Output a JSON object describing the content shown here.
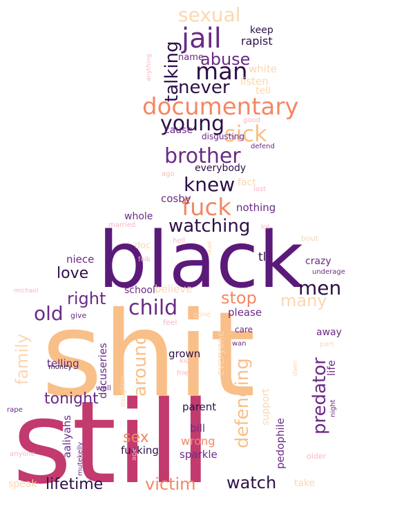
{
  "palette": {
    "black": "#5b1a7a",
    "purple": "#6a2a86",
    "deep_purple": "#2d0f47",
    "magenta": "#c23a6e",
    "pink": "#d05a7a",
    "orange": "#f48763",
    "peach": "#f9bf88",
    "light_peach": "#fbd7b1",
    "light_pink": "#f5b7c0"
  },
  "words": [
    {
      "text": "shit",
      "color": "peach"
    },
    {
      "text": "still",
      "color": "magenta"
    },
    {
      "text": "black",
      "color": "black"
    },
    {
      "text": "documentary",
      "color": "orange"
    },
    {
      "text": "jail",
      "color": "purple"
    },
    {
      "text": "man",
      "color": "deep_purple"
    },
    {
      "text": "sexual",
      "color": "light_peach"
    },
    {
      "text": "abuse",
      "color": "purple"
    },
    {
      "text": "talking",
      "color": "deep_purple"
    },
    {
      "text": "never",
      "color": "deep_purple"
    },
    {
      "text": "young",
      "color": "deep_purple"
    },
    {
      "text": "sick",
      "color": "peach"
    },
    {
      "text": "brother",
      "color": "purple"
    },
    {
      "text": "knew",
      "color": "deep_purple"
    },
    {
      "text": "fuck",
      "color": "orange"
    },
    {
      "text": "watching",
      "color": "deep_purple"
    },
    {
      "text": "keep",
      "color": "deep_purple"
    },
    {
      "text": "rapist",
      "color": "deep_purple"
    },
    {
      "text": "name",
      "color": "purple"
    },
    {
      "text": "white",
      "color": "light_peach"
    },
    {
      "text": "listen",
      "color": "light_peach"
    },
    {
      "text": "tell",
      "color": "light_peach"
    },
    {
      "text": "good",
      "color": "light_pink"
    },
    {
      "text": "cause",
      "color": "purple"
    },
    {
      "text": "disgusting",
      "color": "purple"
    },
    {
      "text": "defend",
      "color": "purple"
    },
    {
      "text": "everybody",
      "color": "deep_purple"
    },
    {
      "text": "fact",
      "color": "light_peach"
    },
    {
      "text": "last",
      "color": "light_pink"
    },
    {
      "text": "ago",
      "color": "light_pink"
    },
    {
      "text": "anything",
      "color": "light_pink"
    },
    {
      "text": "cosby",
      "color": "purple"
    },
    {
      "text": "nothing",
      "color": "purple"
    },
    {
      "text": "whole",
      "color": "purple"
    },
    {
      "text": "married",
      "color": "light_pink"
    },
    {
      "text": "lol",
      "color": "light_pink"
    },
    {
      "text": "bout",
      "color": "light_peach"
    },
    {
      "text": "doc",
      "color": "light_peach"
    },
    {
      "text": "hell",
      "color": "light_pink"
    },
    {
      "text": "read",
      "color": "light_peach"
    },
    {
      "text": "niece",
      "color": "purple"
    },
    {
      "text": "folk",
      "color": "light_pink"
    },
    {
      "text": "tl",
      "color": "deep_purple"
    },
    {
      "text": "crazy",
      "color": "purple"
    },
    {
      "text": "underage",
      "color": "purple"
    },
    {
      "text": "love",
      "color": "deep_purple"
    },
    {
      "text": "men",
      "color": "deep_purple"
    },
    {
      "text": "michael",
      "color": "light_pink"
    },
    {
      "text": "right",
      "color": "purple"
    },
    {
      "text": "school",
      "color": "purple"
    },
    {
      "text": "believe",
      "color": "light_peach"
    },
    {
      "text": "stop",
      "color": "orange"
    },
    {
      "text": "many",
      "color": "light_peach"
    },
    {
      "text": "old",
      "color": "purple"
    },
    {
      "text": "child",
      "color": "purple"
    },
    {
      "text": "give",
      "color": "purple"
    },
    {
      "text": "feel",
      "color": "light_pink"
    },
    {
      "text": "please",
      "color": "purple"
    },
    {
      "text": "gone",
      "color": "light_peach"
    },
    {
      "text": "family",
      "color": "light_peach"
    },
    {
      "text": "around",
      "color": "peach"
    },
    {
      "text": "docuseries",
      "color": "purple"
    },
    {
      "text": "everyone",
      "color": "light_peach"
    },
    {
      "text": "care",
      "color": "purple"
    },
    {
      "text": "defending",
      "color": "peach"
    },
    {
      "text": "away",
      "color": "purple"
    },
    {
      "text": "wan",
      "color": "purple"
    },
    {
      "text": "part",
      "color": "light_peach"
    },
    {
      "text": "grown",
      "color": "deep_purple"
    },
    {
      "text": "telling",
      "color": "purple"
    },
    {
      "text": "money",
      "color": "deep_purple"
    },
    {
      "text": "kid",
      "color": "light_pink"
    },
    {
      "text": "predator",
      "color": "purple"
    },
    {
      "text": "life",
      "color": "purple"
    },
    {
      "text": "daen",
      "color": "light_peach"
    },
    {
      "text": "friend",
      "color": "light_pink"
    },
    {
      "text": "well",
      "color": "purple"
    },
    {
      "text": "daughter",
      "color": "light_peach"
    },
    {
      "text": "tonight",
      "color": "purple"
    },
    {
      "text": "parent",
      "color": "deep_purple"
    },
    {
      "text": "support",
      "color": "light_peach"
    },
    {
      "text": "night",
      "color": "purple"
    },
    {
      "text": "rape",
      "color": "purple"
    },
    {
      "text": "aaliyahs",
      "color": "purple"
    },
    {
      "text": "bill",
      "color": "purple"
    },
    {
      "text": "sex",
      "color": "orange"
    },
    {
      "text": "wrong",
      "color": "orange"
    },
    {
      "text": "pedophile",
      "color": "purple"
    },
    {
      "text": "mutekelly",
      "color": "purple"
    },
    {
      "text": "fucking",
      "color": "deep_purple"
    },
    {
      "text": "age",
      "color": "light_pink"
    },
    {
      "text": "sparkle",
      "color": "purple"
    },
    {
      "text": "anyone",
      "color": "light_pink"
    },
    {
      "text": "older",
      "color": "light_pink"
    },
    {
      "text": "lifetime",
      "color": "deep_purple"
    },
    {
      "text": "victim",
      "color": "orange"
    },
    {
      "text": "watch",
      "color": "deep_purple"
    },
    {
      "text": "speak",
      "color": "light_peach"
    },
    {
      "text": "take",
      "color": "light_peach"
    }
  ]
}
